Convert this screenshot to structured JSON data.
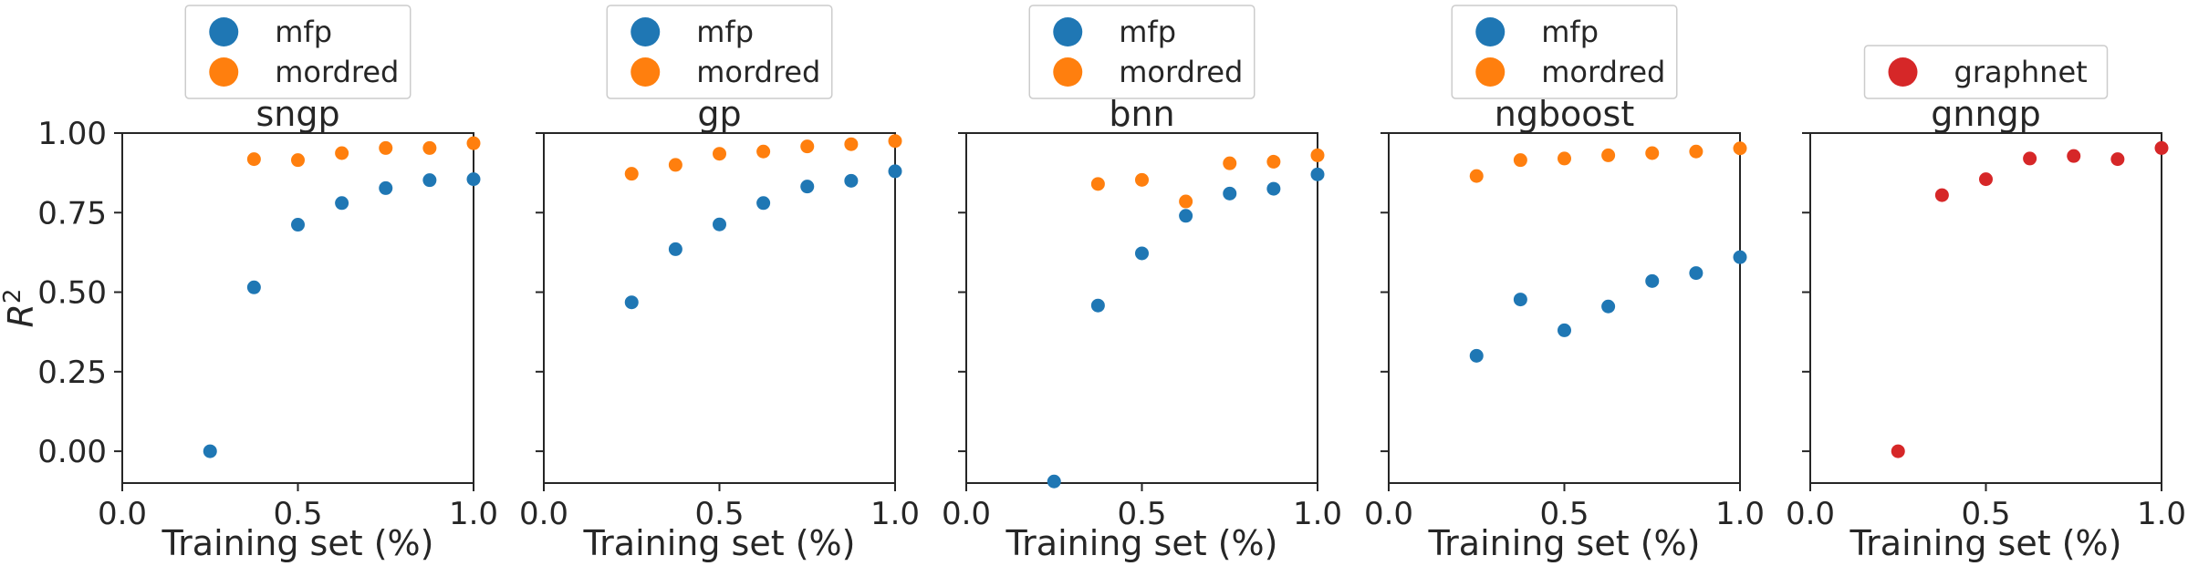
{
  "chart_data": {
    "type": "scatter",
    "shared": {
      "xlabel": "Training set (%)",
      "ylabel_base": "R",
      "ylabel_sup": "2",
      "xlim": [
        0.0,
        1.0
      ],
      "ylim": [
        -0.1,
        1.0
      ],
      "xticks": [
        0.0,
        0.5,
        1.0
      ],
      "xtick_labels": [
        "0.0",
        "0.5",
        "1.0"
      ],
      "yticks": [
        0.0,
        0.25,
        0.5,
        0.75,
        1.0
      ],
      "ytick_labels": [
        "0.00",
        "0.25",
        "0.50",
        "0.75",
        "1.00"
      ],
      "grid": false,
      "legend_placement": "above"
    },
    "panels": [
      {
        "title": "sngp",
        "series": [
          {
            "name": "mfp",
            "color": "#1f77b4",
            "points": [
              [
                0.25,
                0.0
              ],
              [
                0.375,
                0.515
              ],
              [
                0.5,
                0.712
              ],
              [
                0.625,
                0.78
              ],
              [
                0.75,
                0.827
              ],
              [
                0.875,
                0.852
              ],
              [
                1.0,
                0.855
              ]
            ]
          },
          {
            "name": "mordred",
            "color": "#ff7f0e",
            "points": [
              [
                0.375,
                0.918
              ],
              [
                0.5,
                0.915
              ],
              [
                0.625,
                0.937
              ],
              [
                0.75,
                0.953
              ],
              [
                0.875,
                0.953
              ],
              [
                1.0,
                0.968
              ]
            ]
          }
        ]
      },
      {
        "title": "gp",
        "series": [
          {
            "name": "mfp",
            "color": "#1f77b4",
            "points": [
              [
                0.25,
                0.468
              ],
              [
                0.375,
                0.635
              ],
              [
                0.5,
                0.713
              ],
              [
                0.625,
                0.78
              ],
              [
                0.75,
                0.832
              ],
              [
                0.875,
                0.85
              ],
              [
                1.0,
                0.88
              ]
            ]
          },
          {
            "name": "mordred",
            "color": "#ff7f0e",
            "points": [
              [
                0.25,
                0.872
              ],
              [
                0.375,
                0.9
              ],
              [
                0.5,
                0.935
              ],
              [
                0.625,
                0.942
              ],
              [
                0.75,
                0.958
              ],
              [
                0.875,
                0.965
              ],
              [
                1.0,
                0.975
              ]
            ]
          }
        ]
      },
      {
        "title": "bnn",
        "series": [
          {
            "name": "mfp",
            "color": "#1f77b4",
            "points": [
              [
                0.25,
                -0.095
              ],
              [
                0.375,
                0.458
              ],
              [
                0.5,
                0.622
              ],
              [
                0.625,
                0.74
              ],
              [
                0.75,
                0.81
              ],
              [
                0.875,
                0.825
              ],
              [
                1.0,
                0.87
              ]
            ]
          },
          {
            "name": "mordred",
            "color": "#ff7f0e",
            "points": [
              [
                0.375,
                0.84
              ],
              [
                0.5,
                0.853
              ],
              [
                0.625,
                0.785
              ],
              [
                0.75,
                0.905
              ],
              [
                0.875,
                0.91
              ],
              [
                1.0,
                0.93
              ]
            ]
          }
        ]
      },
      {
        "title": "ngboost",
        "series": [
          {
            "name": "mfp",
            "color": "#1f77b4",
            "points": [
              [
                0.25,
                0.3
              ],
              [
                0.375,
                0.477
              ],
              [
                0.5,
                0.38
              ],
              [
                0.625,
                0.455
              ],
              [
                0.75,
                0.535
              ],
              [
                0.875,
                0.56
              ],
              [
                1.0,
                0.61
              ]
            ]
          },
          {
            "name": "mordred",
            "color": "#ff7f0e",
            "points": [
              [
                0.25,
                0.865
              ],
              [
                0.375,
                0.915
              ],
              [
                0.5,
                0.92
              ],
              [
                0.625,
                0.93
              ],
              [
                0.75,
                0.937
              ],
              [
                0.875,
                0.942
              ],
              [
                1.0,
                0.952
              ]
            ]
          }
        ]
      },
      {
        "title": "gnngp",
        "series": [
          {
            "name": "graphnet",
            "color": "#d62728",
            "points": [
              [
                0.25,
                0.0
              ],
              [
                0.375,
                0.805
              ],
              [
                0.5,
                0.855
              ],
              [
                0.625,
                0.92
              ],
              [
                0.75,
                0.928
              ],
              [
                0.875,
                0.918
              ],
              [
                1.0,
                0.953
              ]
            ]
          }
        ]
      }
    ]
  }
}
